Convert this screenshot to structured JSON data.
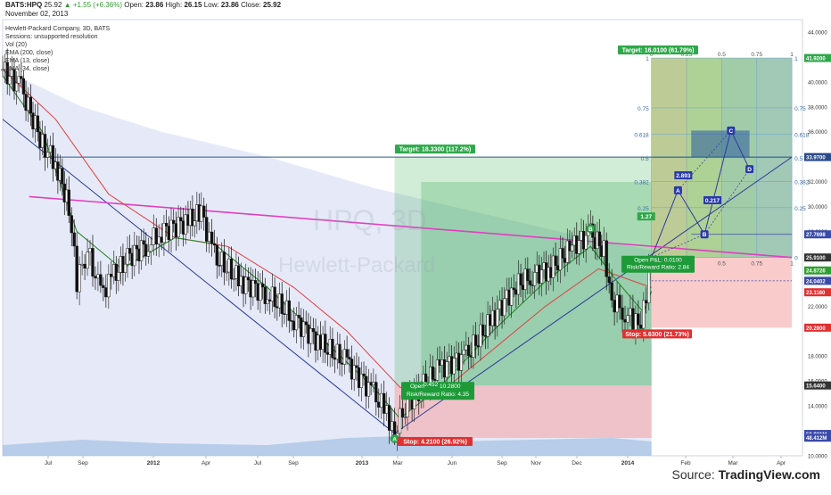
{
  "header": {
    "symbol": "BATS:HPQ",
    "last": "25.92",
    "change": "+1.55 (+6.36%)",
    "open_label": "Open:",
    "open": "23.86",
    "high_label": "High:",
    "high": "26.15",
    "low_label": "Low:",
    "low": "23.86",
    "close_label": "Close:",
    "close": "25.92",
    "date": "November 02, 2013"
  },
  "legend": [
    "Hewlett-Packard Company, 3D, BATS",
    "Sessions: unsupported resolution",
    "Vol (20)",
    "EMA (200, close)",
    "EMA (13, close)",
    "EMA (34, close)"
  ],
  "watermark": {
    "symbol": "HPQ, 3D",
    "name": "Hewlett-Packard"
  },
  "source": {
    "prefix": "Source:",
    "brand": "TradingView.com"
  },
  "colors": {
    "price_up": "#2e9e2e",
    "ema13": "#2a8a2a",
    "ema34": "#e04040",
    "ema200": "#c8d0f0",
    "trendline": "#2a3a9a",
    "resistance": "#e040c0",
    "target_zone": "#2ea84a",
    "stop_zone": "#f4a0a0",
    "fib_grid": "#6aa0c8"
  },
  "chart_data": {
    "type": "candlestick",
    "series": [
      {
        "name": "Hewlett-Packard Company, 3D, BATS"
      },
      {
        "name": "EMA (200, close)"
      },
      {
        "name": "EMA (13, close)"
      },
      {
        "name": "EMA (34, close)"
      },
      {
        "name": "Vol (20)"
      }
    ],
    "x_ticks": [
      "Jul",
      "Sep",
      "2012",
      "Apr",
      "Jul",
      "Sep",
      "2013",
      "Mar",
      "Jun",
      "Sep",
      "Nov",
      "Dec",
      "2014",
      "Feb",
      "Mar",
      "Apr"
    ],
    "y_ticks": [
      "44.0000",
      "40.0000",
      "38.0000",
      "36.0000",
      "34.0000",
      "32.0000",
      "30.0000",
      "28.0000",
      "26.0000",
      "22.0000",
      "18.0000",
      "16.0000",
      "14.0000",
      "10.0000"
    ],
    "ylim": [
      10,
      45
    ],
    "price_path": [
      [
        2011.4,
        41
      ],
      [
        2011.47,
        39.5
      ],
      [
        2011.55,
        35
      ],
      [
        2011.6,
        33.5
      ],
      [
        2011.65,
        30
      ],
      [
        2011.68,
        24
      ],
      [
        2011.72,
        26.5
      ],
      [
        2011.77,
        23
      ],
      [
        2011.82,
        24.5
      ],
      [
        2011.88,
        26
      ],
      [
        2011.95,
        27
      ],
      [
        2012.0,
        28
      ],
      [
        2012.1,
        28.8
      ],
      [
        2012.15,
        29.5
      ],
      [
        2012.2,
        26
      ],
      [
        2012.3,
        24
      ],
      [
        2012.4,
        23
      ],
      [
        2012.5,
        21
      ],
      [
        2012.6,
        19
      ],
      [
        2012.7,
        17.5
      ],
      [
        2012.8,
        15
      ],
      [
        2012.85,
        13.5
      ],
      [
        2012.88,
        11.8
      ],
      [
        2012.92,
        14
      ],
      [
        2012.98,
        15.5
      ],
      [
        2013.05,
        17
      ],
      [
        2013.15,
        18
      ],
      [
        2013.25,
        21
      ],
      [
        2013.33,
        23.5
      ],
      [
        2013.4,
        24.5
      ],
      [
        2013.47,
        25
      ],
      [
        2013.55,
        26.8
      ],
      [
        2013.62,
        27.8
      ],
      [
        2013.67,
        26.5
      ],
      [
        2013.7,
        22.5
      ],
      [
        2013.75,
        21.5
      ],
      [
        2013.78,
        20.8
      ],
      [
        2013.81,
        20.3
      ],
      [
        2013.84,
        24.37
      ],
      [
        2013.85,
        25.92
      ]
    ],
    "ema13_path": [
      [
        2011.4,
        40.5
      ],
      [
        2011.55,
        36
      ],
      [
        2011.68,
        28
      ],
      [
        2011.85,
        25
      ],
      [
        2012.05,
        27.5
      ],
      [
        2012.2,
        27
      ],
      [
        2012.4,
        23.5
      ],
      [
        2012.6,
        19.5
      ],
      [
        2012.8,
        15.5
      ],
      [
        2012.9,
        13
      ],
      [
        2013.05,
        15.5
      ],
      [
        2013.25,
        20
      ],
      [
        2013.45,
        24
      ],
      [
        2013.62,
        26.8
      ],
      [
        2013.72,
        24
      ],
      [
        2013.82,
        21.5
      ],
      [
        2013.85,
        23.2
      ]
    ],
    "ema34_path": [
      [
        2011.4,
        41
      ],
      [
        2011.6,
        37
      ],
      [
        2011.8,
        31
      ],
      [
        2012.05,
        27.5
      ],
      [
        2012.25,
        26.8
      ],
      [
        2012.5,
        23.5
      ],
      [
        2012.7,
        20
      ],
      [
        2012.9,
        15.5
      ],
      [
        2013.05,
        15
      ],
      [
        2013.25,
        18.5
      ],
      [
        2013.45,
        22
      ],
      [
        2013.65,
        25
      ],
      [
        2013.85,
        23.5
      ]
    ],
    "ema200_path": [
      [
        2011.4,
        41
      ],
      [
        2011.7,
        38
      ],
      [
        2012.0,
        36
      ],
      [
        2012.4,
        34
      ],
      [
        2012.8,
        31.5
      ],
      [
        2013.2,
        29.5
      ],
      [
        2013.6,
        27.5
      ],
      [
        2013.85,
        26.5
      ]
    ],
    "volume_path": [
      [
        2011.4,
        0.3
      ],
      [
        2011.7,
        0.45
      ],
      [
        2012.0,
        0.35
      ],
      [
        2012.4,
        0.3
      ],
      [
        2012.7,
        0.5
      ],
      [
        2012.9,
        0.55
      ],
      [
        2013.1,
        0.4
      ],
      [
        2013.4,
        0.45
      ],
      [
        2013.7,
        0.5
      ],
      [
        2013.85,
        0.4
      ]
    ],
    "trendline_down": [
      [
        2011.4,
        37
      ],
      [
        2012.88,
        11.8
      ]
    ],
    "trendline_up": [
      [
        2012.88,
        11.8
      ],
      [
        2014.38,
        33.97
      ]
    ],
    "resistance_line": [
      [
        2011.5,
        30.8
      ],
      [
        2014.38,
        25.91
      ]
    ],
    "horizontal_line": {
      "x": [
        2011.55,
        2014.38
      ],
      "y": 33.97
    },
    "current_price_line": {
      "x": [
        2013.85,
        2014.38
      ],
      "y": 24.04
    },
    "abcd_pattern_1": {
      "points": [
        [
          2012.88,
          11.8
        ],
        [
          2013.62,
          27.8
        ],
        [
          2013.81,
          20.3
        ]
      ],
      "labels": [
        "A",
        "B",
        "C"
      ]
    },
    "abcd_pattern_2": {
      "points": [
        [
          2013.85,
          25.92
        ],
        [
          2013.95,
          31.3
        ],
        [
          2014.05,
          27.77
        ],
        [
          2014.15,
          36.1
        ],
        [
          2014.22,
          33.0
        ]
      ],
      "labels": [
        "",
        "A",
        "B",
        "C",
        "D"
      ],
      "ratios": [
        "1.27",
        "2.893",
        "0.217"
      ]
    },
    "position_1": {
      "target": "Target: 18.3300 (117.2%)",
      "stop": "Stop: 4.2100 (26.92%)",
      "open": "Open",
      "open_pl": "0.452",
      "pl_value": "10.2800",
      "risk_reward": "Risk/Reward Ratio: 4.35",
      "entry": 15.64,
      "target_price": 33.97,
      "stop_price": 11.43,
      "x": [
        2012.88,
        2013.85
      ]
    },
    "position_2": {
      "target": "Target: 16.0100 (61.79%)",
      "stop": "Stop: 5.6300 (21.73%)",
      "open": "Open P&L: 0.0100",
      "risk_reward": "Risk/Reward Ratio: 2.84",
      "entry": 25.91,
      "target_price": 41.92,
      "stop_price": 20.28,
      "x": [
        2013.85,
        2014.38
      ]
    },
    "fib_levels": [
      "0",
      "0.25",
      "0.382",
      "0.5",
      "0.618",
      "0.75",
      "1"
    ],
    "fib_time_levels": [
      "0",
      "0.25",
      "0.5",
      "0.75",
      "1"
    ],
    "price_labels": [
      {
        "value": "41.9200",
        "y": 41.92,
        "color": "#2ea84a"
      },
      {
        "value": "33.9700",
        "y": 33.97,
        "color": "#2a4a8a"
      },
      {
        "value": "27.7698",
        "y": 27.77,
        "color": "#3a4aa8"
      },
      {
        "value": "25.9100",
        "y": 25.91,
        "color": "#333333"
      },
      {
        "value": "24.8726",
        "y": 24.87,
        "color": "#2e9e2e"
      },
      {
        "value": "24.0402",
        "y": 24.04,
        "color": "#3a4aa8"
      },
      {
        "value": "23.1180",
        "y": 23.12,
        "color": "#e03030"
      },
      {
        "value": "20.2800",
        "y": 20.28,
        "color": "#e03030"
      },
      {
        "value": "15.6400",
        "y": 15.64,
        "color": "#333333"
      },
      {
        "value": "50.931M",
        "y": 11.75,
        "color": "#3a4aa8"
      },
      {
        "value": "48.412M",
        "y": 11.45,
        "color": "#3a4aa8"
      }
    ]
  }
}
